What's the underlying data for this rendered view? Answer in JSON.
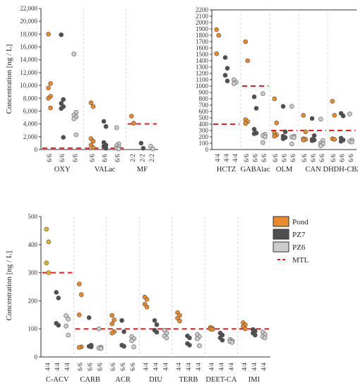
{
  "colors": {
    "Pond": "#e8892b",
    "PZ7": "#4f4f4f",
    "PZ6": "#cccccc",
    "MTL": "#e02020",
    "C-ACV-Pond": "#d8b42a"
  },
  "legend": [
    "Pond",
    "PZ7",
    "PZ6",
    "MTL"
  ],
  "chart_data": [
    {
      "type": "scatter",
      "ylabel": "Concentration [ng / L]",
      "ylim": [
        0,
        22000
      ],
      "yticks": [
        "0",
        "2,000",
        "4,000",
        "6,000",
        "8,000",
        "10,000",
        "12,000",
        "14,000",
        "16,000",
        "18,000",
        "20,000",
        "22,000"
      ],
      "grid": true,
      "groups": [
        {
          "name": "OXY",
          "mtl": 200,
          "labels": [
            "6/6",
            "6/6",
            "6/6"
          ],
          "series": {
            "Pond": [
              18000,
              10300,
              9600,
              8300,
              8000,
              6500
            ],
            "PZ7": [
              17900,
              7800,
              7200,
              6700,
              6400,
              1900
            ],
            "PZ6": [
              14900,
              5800,
              5400,
              5100,
              4800,
              2300
            ]
          }
        },
        {
          "name": "VALac",
          "mtl": 200,
          "labels": [
            "6/6",
            "6/6",
            "6/6"
          ],
          "series": {
            "Pond": [
              7300,
              6700,
              1700,
              1300,
              700,
              300
            ],
            "PZ7": [
              4400,
              3600,
              1100,
              700,
              500,
              200
            ],
            "PZ6": [
              3400,
              900,
              600,
              400,
              200,
              100
            ]
          }
        },
        {
          "name": "MF",
          "mtl": 4000,
          "labels": [
            "2/2",
            "2/2",
            "2/2"
          ],
          "series": {
            "Pond": [
              5200,
              4100
            ],
            "PZ7": [
              1000,
              200
            ],
            "PZ6": [
              500,
              100
            ]
          }
        }
      ]
    },
    {
      "type": "scatter",
      "ylim": [
        0,
        2200
      ],
      "yticks": [
        "0",
        "100",
        "200",
        "300",
        "400",
        "500",
        "600",
        "700",
        "800",
        "900",
        "1000",
        "1100",
        "1200",
        "1300",
        "1400",
        "1500",
        "1600",
        "1700",
        "1800",
        "1900",
        "2000",
        "2100",
        "2200"
      ],
      "grid": true,
      "groups": [
        {
          "name": "HCTZ",
          "mtl": 400,
          "labels": [
            "4/4",
            "4/4",
            "4/4"
          ],
          "series": {
            "Pond": [
              1890,
              1800,
              1510
            ],
            "PZ7": [
              1450,
              1280,
              1170,
              1080
            ],
            "PZ6": [
              1100,
              1060,
              1040
            ]
          }
        },
        {
          "name": "GABAlac",
          "mtl": 1000,
          "labels": [
            "6/6",
            "6/6",
            "6/6"
          ],
          "series": {
            "Pond": [
              1700,
              1400,
              470,
              440,
              410
            ],
            "PZ7": [
              830,
              650,
              320,
              260,
              250
            ],
            "PZ6": [
              880,
              240,
              220,
              200,
              110
            ]
          }
        },
        {
          "name": "OLM",
          "mtl": 300,
          "labels": [
            "6/6",
            "6/6",
            "6/6"
          ],
          "series": {
            "Pond": [
              800,
              420,
              260,
              230,
              210
            ],
            "PZ7": [
              680,
              280,
              210,
              190,
              170
            ],
            "PZ6": [
              680,
              210,
              200,
              190,
              90
            ]
          }
        },
        {
          "name": "CAN",
          "mtl": 300,
          "labels": [
            "6/6",
            "6/6",
            "6/6"
          ],
          "series": {
            "Pond": [
              540,
              280,
              170,
              160,
              150
            ],
            "PZ7": [
              490,
              220,
              160,
              150,
              140
            ],
            "PZ6": [
              480,
              140,
              100,
              90,
              60
            ]
          }
        },
        {
          "name": "DHDH-CBZ",
          "mtl": 300,
          "labels": [
            "6/6",
            "6/6",
            "6/6"
          ],
          "series": {
            "Pond": [
              760,
              540,
              170,
              160
            ],
            "PZ7": [
              570,
              530,
              180,
              150,
              130
            ],
            "PZ6": [
              560,
              150,
              130,
              120
            ]
          }
        }
      ]
    },
    {
      "type": "scatter",
      "ylabel": "Concentration [ng / L]",
      "ylim": [
        0,
        500
      ],
      "yticks": [
        "0",
        "100",
        "200",
        "300",
        "400",
        "500"
      ],
      "grid": true,
      "legend_position": "right",
      "groups": [
        {
          "name": "C-ACV",
          "mtl": 300,
          "labels": [
            "4/4",
            "4/4",
            "4/4"
          ],
          "series": {
            "C-ACV-Pond": [
              455,
              410,
              335,
              300
            ],
            "PZ7": [
              230,
              210,
              120,
              113
            ],
            "PZ6": [
              147,
              135,
              110,
              78
            ]
          }
        },
        {
          "name": "CARB",
          "mtl": 100,
          "labels": [
            "6/6",
            "6/6",
            "6/6"
          ],
          "series": {
            "Pond": [
              260,
              222,
              150,
              36,
              34
            ],
            "PZ7": [
              140,
              42,
              38,
              36
            ],
            "PZ6": [
              100,
              35,
              32,
              30
            ]
          }
        },
        {
          "name": "ACR",
          "mtl": 100,
          "labels": [
            "6/6",
            "6/6",
            "6/6"
          ],
          "series": {
            "Pond": [
              148,
              132,
              118,
              90,
              85
            ],
            "PZ7": [
              130,
              90,
              42,
              38
            ],
            "PZ6": [
              72,
              65,
              58,
              36
            ]
          }
        },
        {
          "name": "DIU",
          "mtl": 100,
          "labels": [
            "4/4",
            "4/4",
            "4/4"
          ],
          "series": {
            "Pond": [
              213,
              205,
              188,
              178
            ],
            "PZ7": [
              130,
              115,
              95,
              88
            ],
            "PZ6": [
              95,
              85,
              75,
              68
            ]
          }
        },
        {
          "name": "TERB",
          "mtl": 100,
          "labels": [
            "4/4",
            "4/4",
            "4/4"
          ],
          "series": {
            "Pond": [
              158,
              148,
              138,
              128
            ],
            "PZ7": [
              75,
              68,
              48,
              42
            ],
            "PZ6": [
              80,
              72,
              65,
              40
            ]
          }
        },
        {
          "name": "DEET-CA",
          "mtl": 100,
          "labels": [
            "4/4",
            "4/4",
            "4/4"
          ],
          "series": {
            "Pond": [
              105,
              102,
              100,
              98
            ],
            "PZ7": [
              85,
              78,
              68,
              60
            ],
            "PZ6": [
              62,
              58,
              55,
              52
            ]
          }
        },
        {
          "name": "IMI",
          "mtl": 100,
          "labels": [
            "4/4",
            "4/4",
            "4/4"
          ],
          "series": {
            "Pond": [
              122,
              115,
              108,
              100
            ],
            "PZ7": [
              98,
              92,
              85,
              78
            ],
            "PZ6": [
              88,
              80,
              72,
              68
            ]
          }
        }
      ]
    }
  ]
}
